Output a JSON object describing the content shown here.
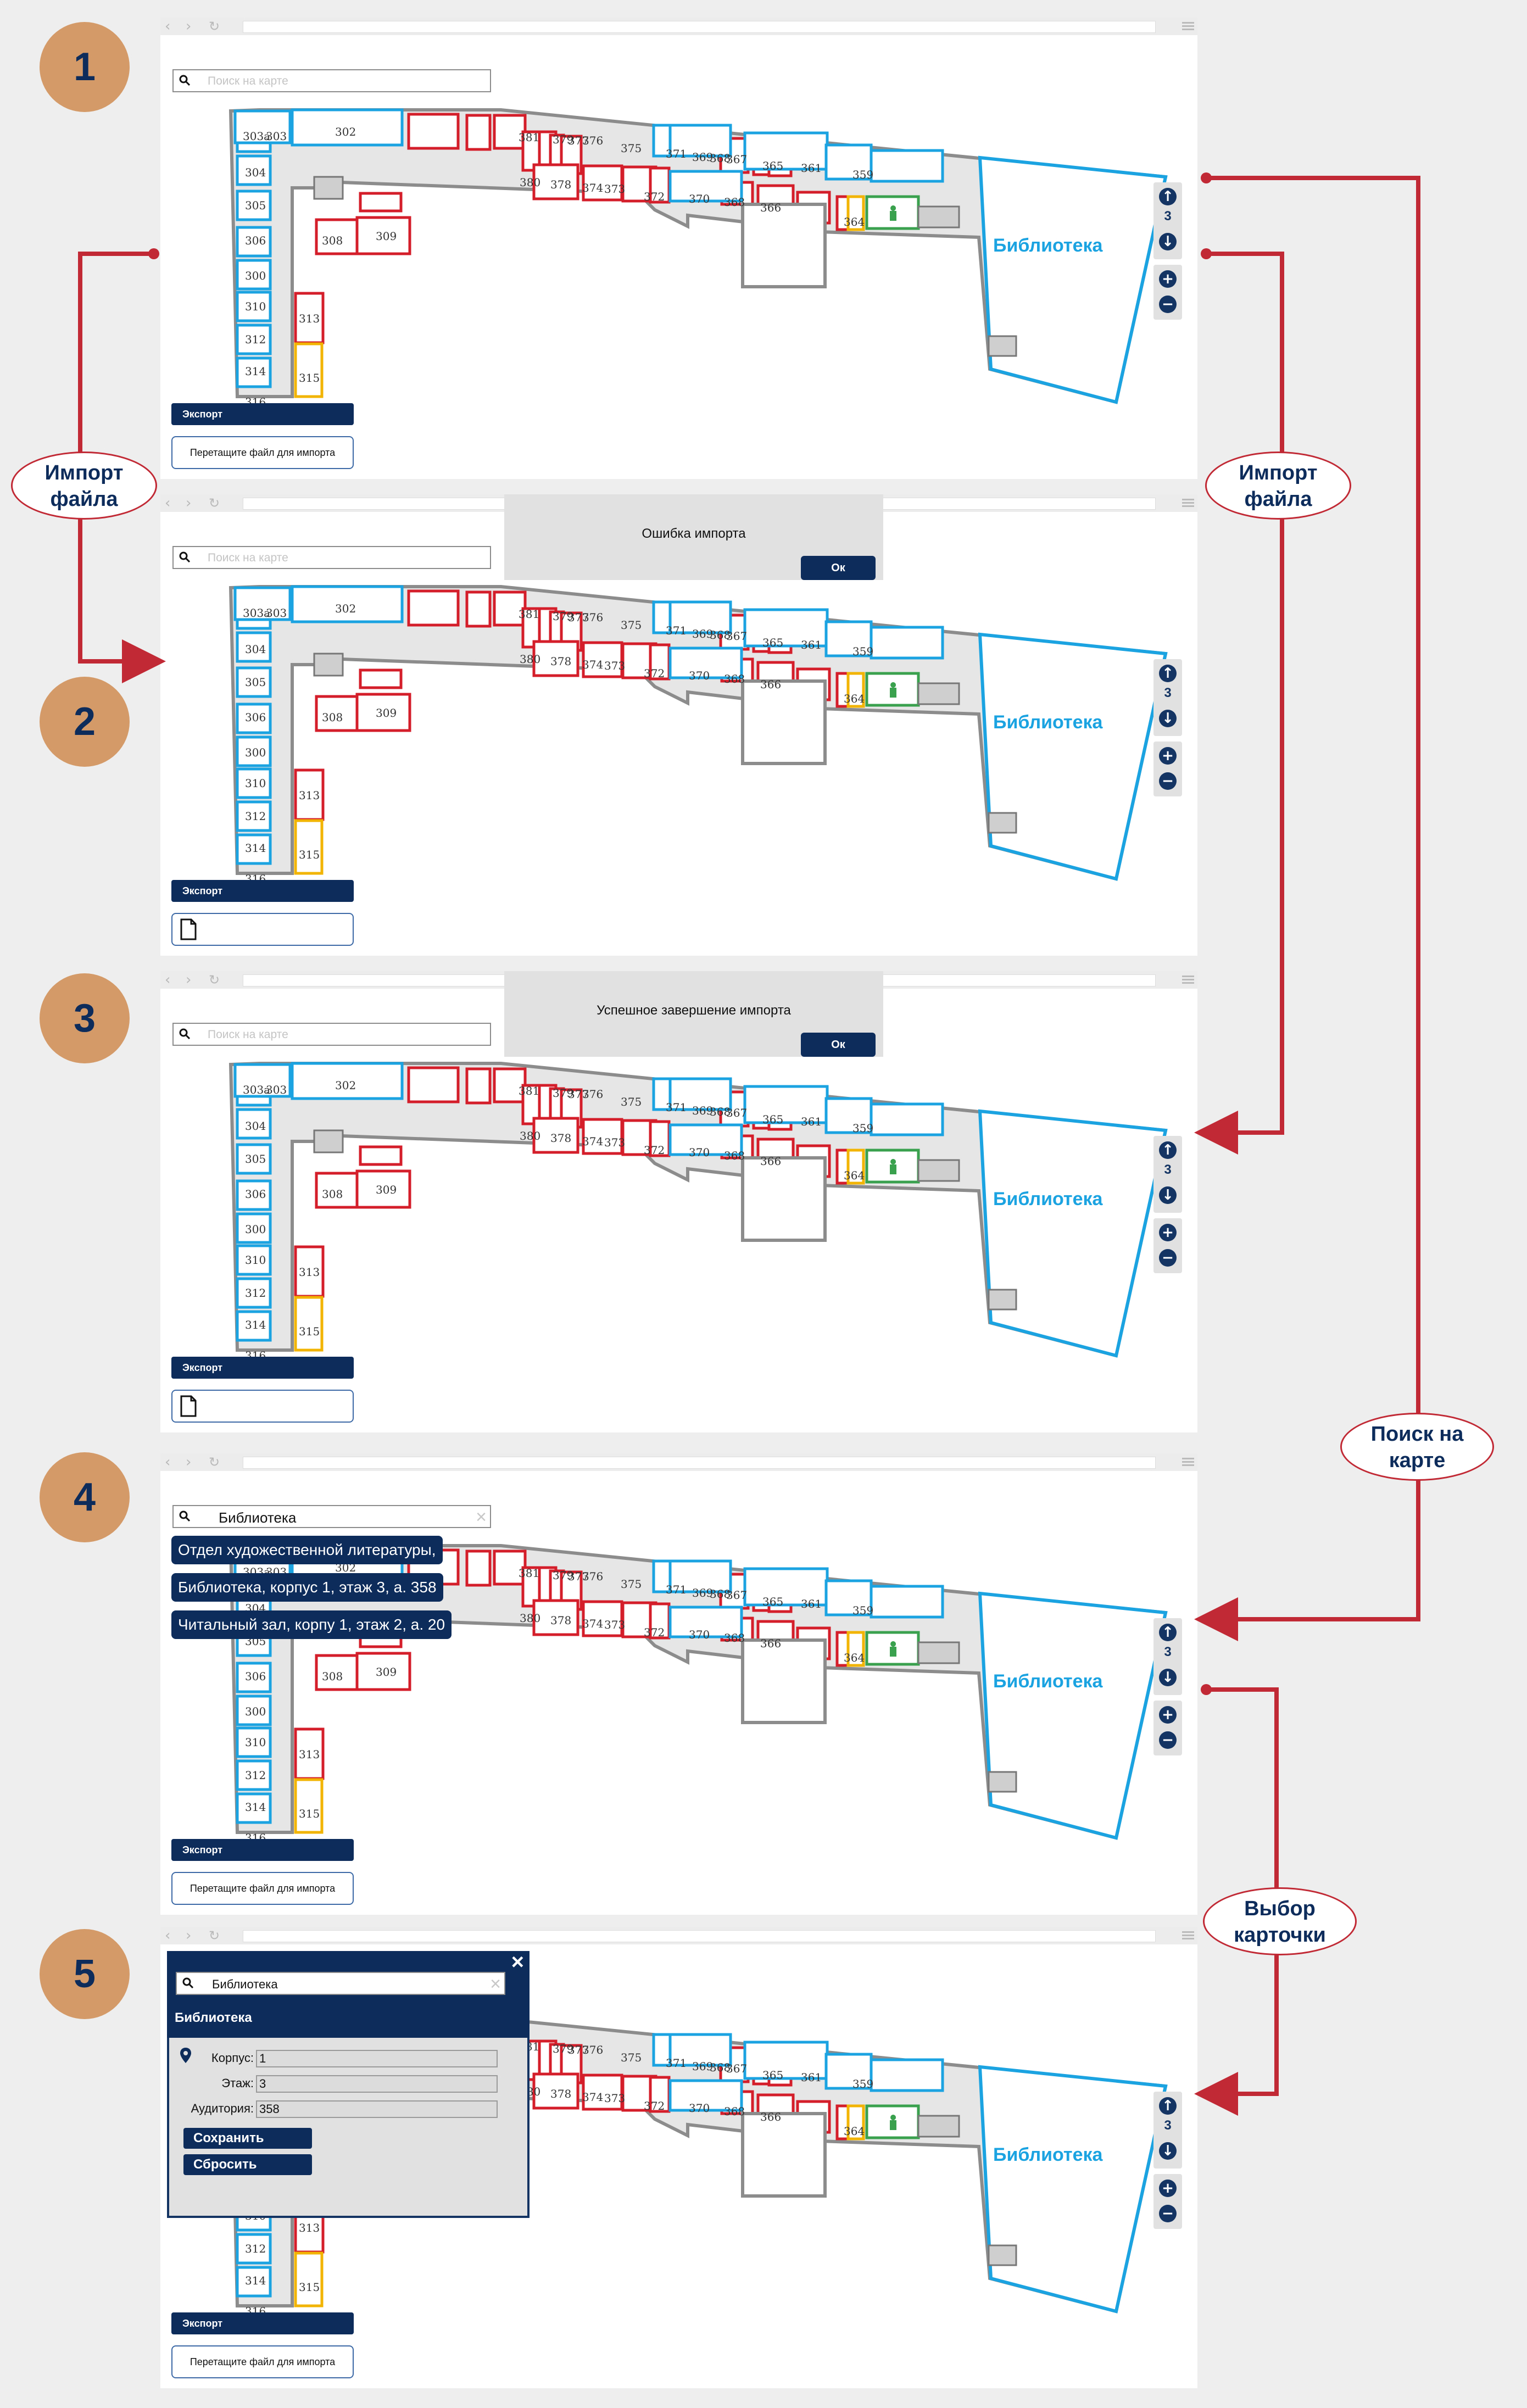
{
  "steps": [
    "1",
    "2",
    "3",
    "4",
    "5"
  ],
  "callouts": {
    "import_left": [
      "Импорт",
      "файла"
    ],
    "import_right": [
      "Импорт",
      "файла"
    ],
    "search": [
      "Поиск на",
      "карте"
    ],
    "card": [
      "Выбор",
      "карточки"
    ]
  },
  "map": {
    "search_placeholder": "Поиск на карте",
    "library_label": "Библиотека",
    "floor": "3",
    "rooms_top": [
      "303а",
      "303",
      "302",
      "381",
      "379",
      "377",
      "376",
      "375",
      "371",
      "369",
      "368",
      "367",
      "365",
      "361",
      "359"
    ],
    "rooms_mid": [
      "380",
      "378",
      "374",
      "373",
      "372",
      "370",
      "368",
      "366",
      "364"
    ],
    "rooms_left": [
      "304",
      "305",
      "306",
      "308",
      "309",
      "300",
      "310",
      "313",
      "312",
      "314",
      "315",
      "316"
    ],
    "export_label": "Экспорт",
    "drop_label": "Перетащите файл для импорта"
  },
  "screens": {
    "s2": {
      "dialog": "Ошибка импорта",
      "ok": "Ок"
    },
    "s3": {
      "dialog": "Успешное завершение импорта",
      "ok": "Ок"
    },
    "s4": {
      "search_value": "Библиотека",
      "suggestions": [
        "Отдел художественной литературы,",
        "Библиотека, корпус 1, этаж 3, а. 358",
        "Читальный зал, корпу 1, этаж 2, а. 20"
      ]
    },
    "s5": {
      "search_value": "Библиотека",
      "card_title": "Библиотека",
      "fields": [
        {
          "label": "Корпус:",
          "value": "1"
        },
        {
          "label": "Этаж:",
          "value": "3"
        },
        {
          "label": "Аудитория:",
          "value": "358"
        }
      ],
      "save": "Сохранить",
      "reset": "Сбросить"
    }
  },
  "colors": {
    "accent": "#c12a35",
    "navy": "#0d2c5c",
    "cyan": "#1aa3e0",
    "step": "#d49a68"
  }
}
